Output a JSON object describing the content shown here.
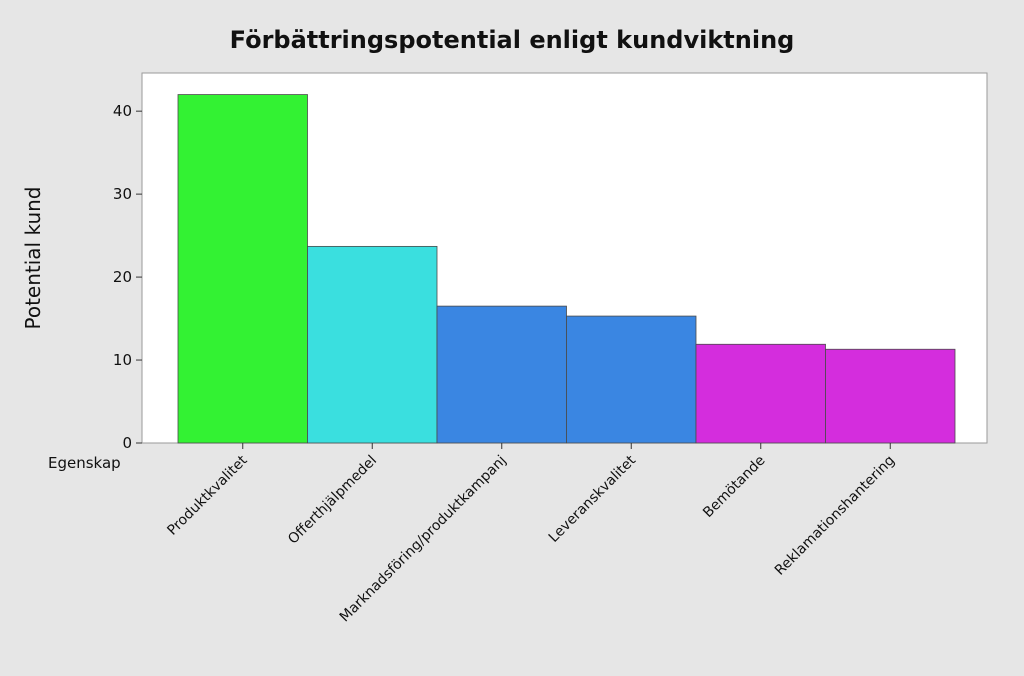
{
  "chart_data": {
    "type": "bar",
    "title": "Förbättringspotential enligt kundviktning",
    "ylabel": "Potential kund",
    "xlabel": "Egenskap",
    "ylim": [
      0,
      44.6
    ],
    "yticks": [
      0,
      10,
      20,
      30,
      40
    ],
    "grid": false,
    "categories": [
      "Produktkvalitet",
      "Offerthjälpmedel",
      "Marknadsföring/produktkampanj",
      "Leveranskvalitet",
      "Bemötande",
      "Reklamationshantering"
    ],
    "values": [
      42.0,
      23.7,
      16.5,
      15.3,
      11.9,
      11.3
    ],
    "colors": [
      "#33f233",
      "#3adfdf",
      "#3a86e2",
      "#3a86e2",
      "#d42ddd",
      "#d42ddd"
    ],
    "background": "#e6e6e6",
    "plot_background": "#ffffff"
  }
}
